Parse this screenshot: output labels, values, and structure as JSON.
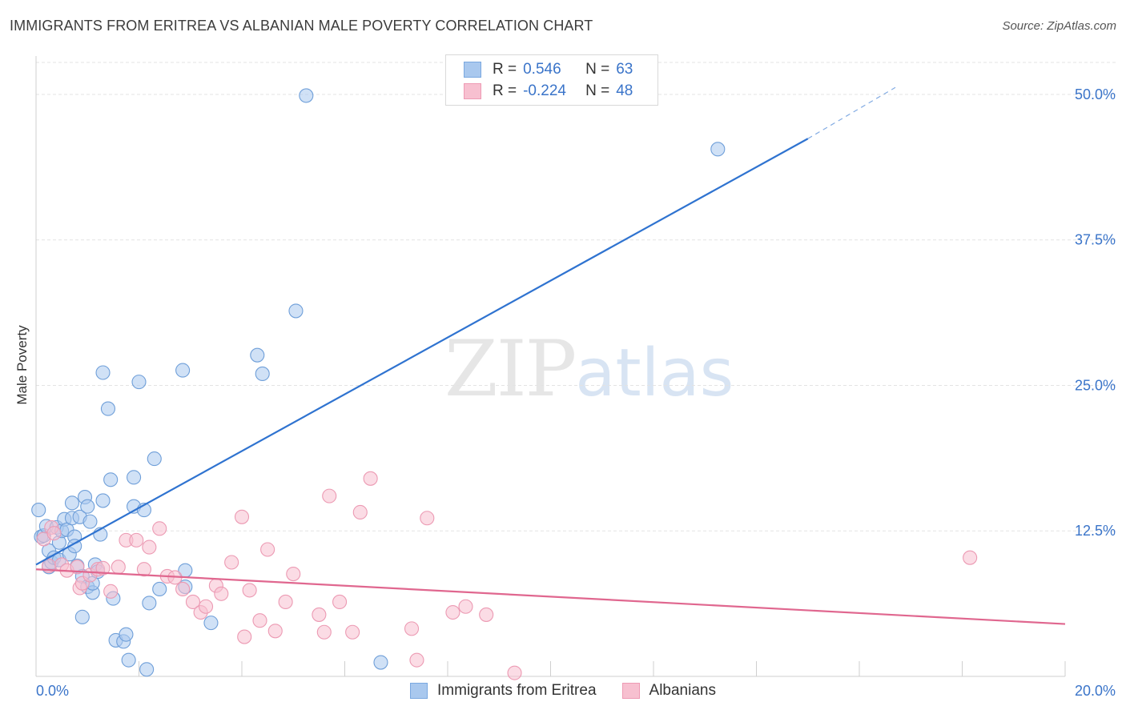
{
  "header": {
    "title": "IMMIGRANTS FROM ERITREA VS ALBANIAN MALE POVERTY CORRELATION CHART",
    "source": "Source: ZipAtlas.com"
  },
  "watermark": {
    "zip": "ZIP",
    "atlas": "atlas"
  },
  "legend": {
    "rows": [
      {
        "r_label": "R =",
        "r_value": "0.546",
        "n_label": "N =",
        "n_value": "63",
        "color": "#a9c8ee",
        "stroke": "#7aa8e0"
      },
      {
        "r_label": "R =",
        "r_value": "-0.224",
        "n_label": "N =",
        "n_value": "48",
        "color": "#f7c0d0",
        "stroke": "#ee9ab4"
      }
    ]
  },
  "chart_data": {
    "type": "scatter",
    "title": "IMMIGRANTS FROM ERITREA VS ALBANIAN MALE POVERTY CORRELATION CHART",
    "xlabel": "",
    "ylabel": "Male Poverty",
    "xlim": [
      0,
      20
    ],
    "ylim": [
      0,
      52
    ],
    "x_tick_labels": [
      "0.0%",
      "20.0%"
    ],
    "y_ticks": [
      12.5,
      25.0,
      37.5,
      50.0
    ],
    "y_tick_labels": [
      "12.5%",
      "25.0%",
      "37.5%",
      "50.0%"
    ],
    "grid": true,
    "series": [
      {
        "name": "Immigrants from Eritrea",
        "color": "#a9c8ee",
        "stroke": "#6f9fd9",
        "trend_color": "#2f73d0",
        "trend": {
          "x0": 0,
          "y0": 9.6,
          "x1": 15,
          "y1": 46.2,
          "dash_to_x": 16.7,
          "dash_to_y": 50.6
        },
        "points": [
          [
            0.05,
            14.3
          ],
          [
            0.1,
            12.0
          ],
          [
            0.15,
            12.1
          ],
          [
            0.2,
            12.9
          ],
          [
            0.25,
            10.8
          ],
          [
            0.25,
            9.4
          ],
          [
            0.3,
            9.8
          ],
          [
            0.35,
            10.2
          ],
          [
            0.4,
            12.8
          ],
          [
            0.45,
            11.5
          ],
          [
            0.45,
            10.0
          ],
          [
            0.5,
            12.5
          ],
          [
            0.55,
            13.5
          ],
          [
            0.6,
            12.6
          ],
          [
            0.65,
            10.5
          ],
          [
            0.7,
            13.6
          ],
          [
            0.7,
            14.9
          ],
          [
            0.75,
            12.0
          ],
          [
            0.75,
            11.2
          ],
          [
            0.8,
            9.5
          ],
          [
            0.85,
            13.7
          ],
          [
            0.9,
            8.6
          ],
          [
            0.9,
            5.1
          ],
          [
            0.95,
            15.4
          ],
          [
            1.0,
            7.7
          ],
          [
            1.0,
            14.6
          ],
          [
            1.05,
            13.3
          ],
          [
            1.1,
            7.2
          ],
          [
            1.1,
            8.0
          ],
          [
            1.15,
            9.6
          ],
          [
            1.2,
            9.0
          ],
          [
            1.25,
            12.2
          ],
          [
            1.3,
            15.1
          ],
          [
            1.3,
            26.1
          ],
          [
            1.4,
            23.0
          ],
          [
            1.45,
            16.9
          ],
          [
            1.5,
            6.7
          ],
          [
            1.55,
            3.1
          ],
          [
            1.7,
            3.0
          ],
          [
            1.75,
            3.6
          ],
          [
            1.8,
            1.4
          ],
          [
            1.9,
            17.1
          ],
          [
            1.9,
            14.6
          ],
          [
            2.0,
            25.3
          ],
          [
            2.1,
            14.3
          ],
          [
            2.15,
            0.6
          ],
          [
            2.2,
            6.3
          ],
          [
            2.3,
            18.7
          ],
          [
            2.4,
            7.5
          ],
          [
            2.85,
            26.3
          ],
          [
            2.9,
            9.1
          ],
          [
            2.9,
            7.7
          ],
          [
            3.4,
            4.6
          ],
          [
            4.3,
            27.6
          ],
          [
            4.4,
            26.0
          ],
          [
            5.05,
            31.4
          ],
          [
            5.25,
            49.9
          ],
          [
            6.7,
            1.2
          ],
          [
            13.25,
            45.3
          ]
        ]
      },
      {
        "name": "Albanians",
        "color": "#f7c0d0",
        "stroke": "#ec9ab3",
        "trend_color": "#e0678f",
        "trend": {
          "x0": 0,
          "y0": 9.2,
          "x1": 20,
          "y1": 4.5
        },
        "points": [
          [
            0.15,
            11.8
          ],
          [
            0.25,
            9.5
          ],
          [
            0.3,
            12.8
          ],
          [
            0.35,
            12.3
          ],
          [
            0.5,
            9.6
          ],
          [
            0.6,
            9.1
          ],
          [
            0.8,
            9.4
          ],
          [
            0.85,
            7.6
          ],
          [
            0.9,
            8.0
          ],
          [
            1.05,
            8.7
          ],
          [
            1.2,
            9.2
          ],
          [
            1.3,
            9.3
          ],
          [
            1.45,
            7.3
          ],
          [
            1.6,
            9.4
          ],
          [
            1.75,
            11.7
          ],
          [
            1.95,
            11.7
          ],
          [
            2.1,
            9.2
          ],
          [
            2.2,
            11.1
          ],
          [
            2.4,
            12.7
          ],
          [
            2.55,
            8.6
          ],
          [
            2.7,
            8.5
          ],
          [
            2.85,
            7.5
          ],
          [
            3.05,
            6.4
          ],
          [
            3.2,
            5.5
          ],
          [
            3.3,
            6.0
          ],
          [
            3.5,
            7.8
          ],
          [
            3.6,
            7.1
          ],
          [
            3.8,
            9.8
          ],
          [
            4.0,
            13.7
          ],
          [
            4.05,
            3.4
          ],
          [
            4.15,
            7.4
          ],
          [
            4.35,
            4.8
          ],
          [
            4.5,
            10.9
          ],
          [
            4.65,
            3.9
          ],
          [
            4.85,
            6.4
          ],
          [
            5.0,
            8.8
          ],
          [
            5.5,
            5.3
          ],
          [
            5.6,
            3.8
          ],
          [
            5.7,
            15.5
          ],
          [
            5.9,
            6.4
          ],
          [
            6.15,
            3.8
          ],
          [
            6.3,
            14.1
          ],
          [
            6.5,
            17.0
          ],
          [
            7.3,
            4.1
          ],
          [
            7.4,
            1.4
          ],
          [
            7.6,
            13.6
          ],
          [
            8.1,
            5.5
          ],
          [
            8.35,
            6.0
          ],
          [
            8.75,
            5.3
          ],
          [
            9.3,
            0.3
          ],
          [
            18.15,
            10.2
          ]
        ]
      }
    ]
  }
}
